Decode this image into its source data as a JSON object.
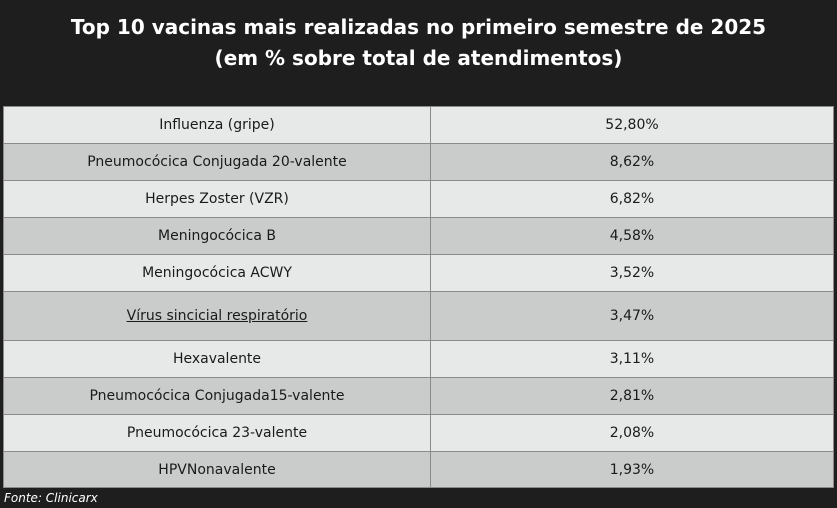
{
  "title_line1": "Top 10 vacinas mais realizadas no primeiro semestre de 2025",
  "title_line2": "(em % sobre total de atendimentos)",
  "source": "Fonte: Clinicarx",
  "colors": {
    "background": "#1e1e1e",
    "row_light": "#e7e9e9",
    "row_dark": "#c9cccb"
  },
  "chart_data": {
    "type": "table",
    "title": "Top 10 vacinas mais realizadas no primeiro semestre de 2025 (em % sobre total de atendimentos)",
    "rows": [
      {
        "name": "Influenza (gripe)",
        "value": "52,80%"
      },
      {
        "name": "Pneumocócica Conjugada 20-valente",
        "value": "8,62%"
      },
      {
        "name": "Herpes Zoster (VZR)",
        "value": "6,82%"
      },
      {
        "name": "Meningocócica B",
        "value": "4,58%"
      },
      {
        "name": "Meningocócica ACWY",
        "value": "3,52%"
      },
      {
        "name": "Vírus sincicial respiratório",
        "value": "3,47%",
        "underlined": true
      },
      {
        "name": "Hexavalente",
        "value": "3,11%"
      },
      {
        "name": "Pneumocócica Conjugada15-valente",
        "value": "2,81%"
      },
      {
        "name": "Pneumocócica 23-valente",
        "value": "2,08%"
      },
      {
        "name": "HPVNonavalente",
        "value": "1,93%"
      }
    ]
  }
}
